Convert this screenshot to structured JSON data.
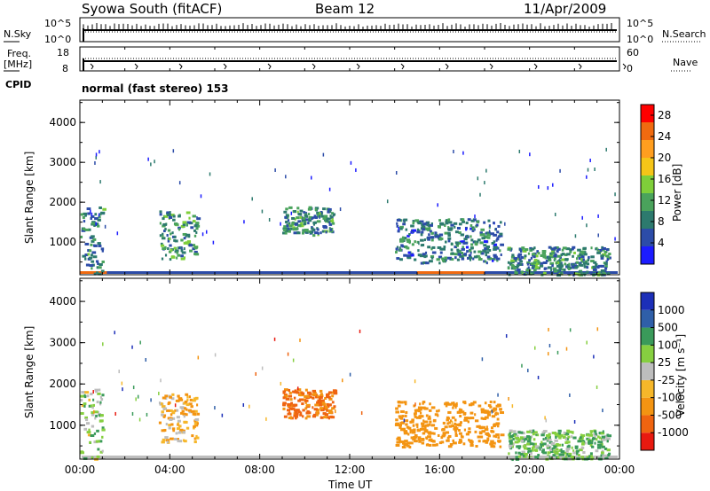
{
  "header": {
    "station": "Syowa South (fitACF)",
    "beam": "Beam 12",
    "date": "11/Apr/2009"
  },
  "top_panels": {
    "nsky_label": "N.Sky",
    "nsearch_label": "N.Search",
    "nsky_ticks": [
      "10^5",
      "10^0"
    ],
    "freq_label_1": "Freq.",
    "freq_label_2": "[MHz]",
    "freq_ticks": [
      "18",
      "8"
    ],
    "nave_label": "Nave",
    "nave_ticks": [
      "60",
      "0"
    ],
    "cpid_label": "CPID",
    "cpid_text": "normal (fast stereo) 153"
  },
  "colors": {
    "power": [
      "#1c1cff",
      "#2c4ca8",
      "#2d7a6e",
      "#4aa35c",
      "#7fcf3a",
      "#f5c518",
      "#ff9e1f",
      "#f06a10",
      "#ff0000"
    ],
    "velocity": [
      "#e81a10",
      "#ef6410",
      "#f39412",
      "#f6b72a",
      "#bdbdbd",
      "#86cf40",
      "#3a9a5a",
      "#2f5fa8",
      "#1c2fb8"
    ]
  },
  "chart_data": [
    {
      "type": "heatmap",
      "name": "power",
      "xlabel": "",
      "ylabel": "Slant Range [km]",
      "xlim": [
        "00:00",
        "24:00"
      ],
      "ylim": [
        180,
        4560
      ],
      "y_ticks": [
        1000,
        2000,
        3000,
        4000
      ],
      "x_ticks": [
        "00:00",
        "04:00",
        "08:00",
        "12:00",
        "16:00",
        "20:00",
        "00:00"
      ],
      "colorbar_label": "Power [dB]",
      "colorbar_ticks": [
        "4",
        "8",
        "12",
        "16",
        "20",
        "24",
        "28"
      ],
      "colorbar_range": [
        0,
        30
      ],
      "regions": [
        {
          "t": [
            0.0,
            1.0
          ],
          "r": [
            200,
            1900
          ],
          "v": 9
        },
        {
          "t": [
            3.5,
            5.2
          ],
          "r": [
            600,
            1800
          ],
          "v": 10
        },
        {
          "t": [
            9.0,
            11.3
          ],
          "r": [
            1200,
            1900
          ],
          "v": 9
        },
        {
          "t": [
            14.0,
            18.7
          ],
          "r": [
            500,
            1600
          ],
          "v": 8
        },
        {
          "t": [
            19.0,
            23.5
          ],
          "r": [
            200,
            900
          ],
          "v": 9
        }
      ]
    },
    {
      "type": "heatmap",
      "name": "velocity",
      "xlabel": "Time UT",
      "ylabel": "Slant Range [km]",
      "xlim": [
        "00:00",
        "24:00"
      ],
      "ylim": [
        180,
        4560
      ],
      "y_ticks": [
        1000,
        2000,
        3000,
        4000
      ],
      "x_ticks": [
        "00:00",
        "04:00",
        "08:00",
        "12:00",
        "16:00",
        "20:00",
        "00:00"
      ],
      "colorbar_label": "Velocity [m s⁻¹]",
      "colorbar_ticks": [
        "1000",
        "500",
        "100",
        "25",
        "-25",
        "-100",
        "-500",
        "-1000"
      ],
      "regions": [
        {
          "t": [
            0.0,
            1.0
          ],
          "r": [
            200,
            1900
          ],
          "v": 50
        },
        {
          "t": [
            3.5,
            5.2
          ],
          "r": [
            600,
            1800
          ],
          "v": -80
        },
        {
          "t": [
            9.0,
            11.3
          ],
          "r": [
            1200,
            1900
          ],
          "v": -600
        },
        {
          "t": [
            14.0,
            18.7
          ],
          "r": [
            500,
            1600
          ],
          "v": -300
        },
        {
          "t": [
            19.0,
            23.5
          ],
          "r": [
            200,
            900
          ],
          "v": 80
        }
      ]
    }
  ]
}
